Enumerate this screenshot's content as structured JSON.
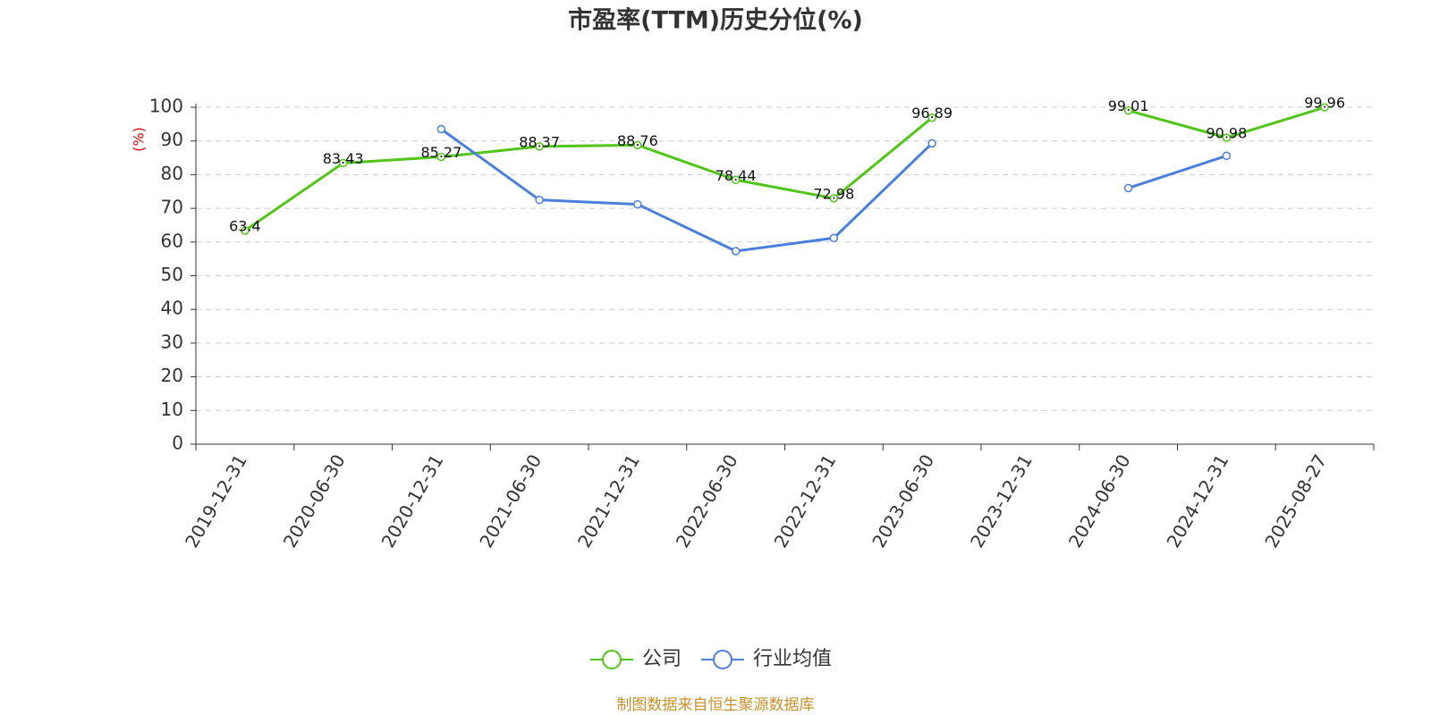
{
  "chart_data": {
    "type": "line",
    "title": "市盈率(TTM)历史分位(%)",
    "y_label": "(%)",
    "categories": [
      "2019-12-31",
      "2020-06-30",
      "2020-12-31",
      "2021-06-30",
      "2021-12-31",
      "2022-06-30",
      "2022-12-31",
      "2023-06-30",
      "2023-12-31",
      "2024-06-30",
      "2024-12-31",
      "2025-08-27"
    ],
    "series": [
      {
        "name": "公司",
        "color": "#52c41a",
        "values": [
          63.4,
          83.43,
          85.27,
          88.37,
          88.76,
          78.44,
          72.98,
          96.89,
          null,
          99.01,
          90.98,
          99.96
        ]
      },
      {
        "name": "行业均值",
        "color": "#4a7fdb",
        "values": [
          null,
          null,
          93.5,
          72.5,
          71.2,
          57.3,
          61.2,
          89.3,
          null,
          76.0,
          85.6,
          null
        ]
      }
    ],
    "ylim": [
      0,
      100
    ],
    "yticks": [
      0,
      10,
      20,
      30,
      40,
      50,
      60,
      70,
      80,
      90,
      100
    ],
    "grid": true,
    "source": "制图数据来自恒生聚源数据库"
  }
}
